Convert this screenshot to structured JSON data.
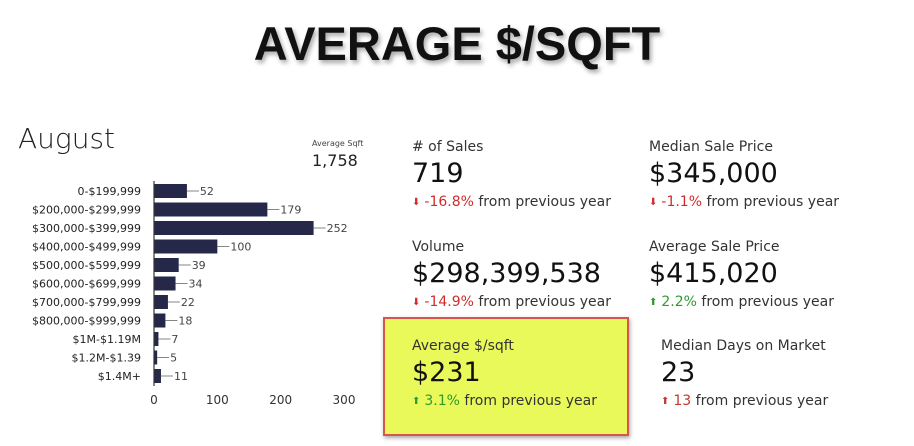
{
  "title": "AVERAGE $/SQFT",
  "month": "August",
  "average_sqft": {
    "label": "Average Sqft",
    "value": "1,758"
  },
  "stats": {
    "sales": {
      "label": "# of Sales",
      "value": "719",
      "pct": "-16.8%",
      "suffix": "from previous year",
      "direction": "down"
    },
    "median_price": {
      "label": "Median Sale Price",
      "value": "$345,000",
      "pct": "-1.1%",
      "suffix": "from previous year",
      "direction": "down"
    },
    "volume": {
      "label": "Volume",
      "value": "$298,399,538",
      "pct": "-14.9%",
      "suffix": "from previous year",
      "direction": "down"
    },
    "avg_price": {
      "label": "Average Sale Price",
      "value": "$415,020",
      "pct": "2.2%",
      "suffix": "from previous year",
      "direction": "up"
    },
    "avg_psf": {
      "label": "Average $/sqft",
      "value": "$231",
      "pct": "3.1%",
      "suffix": "from previous year",
      "direction": "up"
    },
    "median_dom": {
      "label": "Median Days on Market",
      "value": "23",
      "pct": "13",
      "suffix": "from previous year",
      "direction": "up"
    }
  },
  "colors": {
    "bar": "#262849",
    "highlight": "#e9f95a",
    "highlight_border": "#d9534f",
    "down": "#d22b2b",
    "up": "#2e9b2e"
  },
  "chart_data": {
    "type": "bar",
    "orientation": "horizontal",
    "categories": [
      "0-$199,999",
      "$200,000-$299,999",
      "$300,000-$399,999",
      "$400,000-$499,999",
      "$500,000-$599,999",
      "$600,000-$699,999",
      "$700,000-$799,999",
      "$800,000-$999,999",
      "$1M-$1.19M",
      "$1.2M-$1.39",
      "$1.4M+"
    ],
    "values": [
      52,
      179,
      252,
      100,
      39,
      34,
      22,
      18,
      7,
      5,
      11
    ],
    "xticks": [
      0,
      100,
      200,
      300
    ],
    "xlim": [
      0,
      300
    ],
    "grid": false,
    "title": "",
    "xlabel": "",
    "ylabel": ""
  }
}
